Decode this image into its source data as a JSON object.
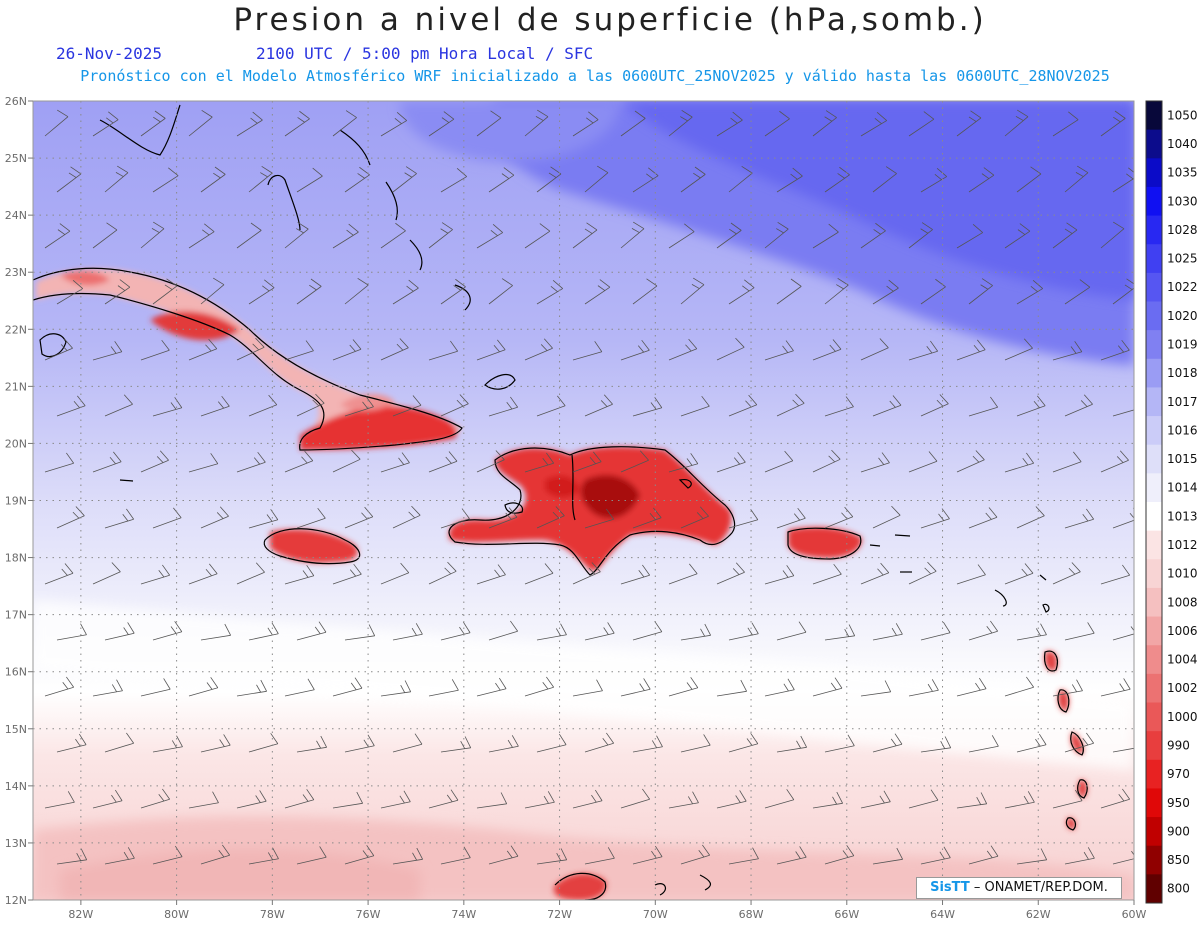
{
  "header": {
    "title": "Presion a nivel de superficie (hPa,somb.)",
    "date": "26-Nov-2025",
    "time": "2100 UTC / 5:00 pm Hora Local / SFC",
    "subtitle": "Pronóstico con el Modelo Atmosférico WRF inicializado a las 0600UTC_25NOV2025 y válido hasta las  0600UTC_28NOV2025"
  },
  "map": {
    "region": "Caribbean / Greater Antilles",
    "lon_range": [
      -83,
      -60
    ],
    "lat_range": [
      12,
      26
    ],
    "gridlines": "dotted",
    "lon_ticks": [
      "82W",
      "80W",
      "78W",
      "76W",
      "74W",
      "72W",
      "70W",
      "68W",
      "66W",
      "64W",
      "62W",
      "60W"
    ],
    "lat_ticks": [
      "26N",
      "25N",
      "24N",
      "23N",
      "22N",
      "21N",
      "20N",
      "19N",
      "18N",
      "17N",
      "16N",
      "15N",
      "14N",
      "13N",
      "12N"
    ],
    "overlay": "wind barbs",
    "colors": {
      "high_pressure": "#6a6cf2",
      "neutral": "#ffffff",
      "low_pressure": "#e82222",
      "coastline": "#000000"
    }
  },
  "colorbar": {
    "levels": [
      "1050",
      "1040",
      "1035",
      "1030",
      "1028",
      "1025",
      "1022",
      "1020",
      "1019",
      "1018",
      "1017",
      "1016",
      "1015",
      "1014",
      "1013",
      "1012",
      "1010",
      "1008",
      "1006",
      "1004",
      "1002",
      "1000",
      "990",
      "970",
      "950",
      "900",
      "850",
      "800"
    ],
    "colors": [
      "#08083a",
      "#0c0c8c",
      "#0b0bc8",
      "#1010f2",
      "#2828f2",
      "#4040f2",
      "#5656f2",
      "#6a6cf2",
      "#8080f2",
      "#9a9cf4",
      "#b4b6f6",
      "#cbccf8",
      "#dedff9",
      "#efeffb",
      "#ffffff",
      "#fbe4e4",
      "#f8d4d4",
      "#f5c0c0",
      "#f2a6a6",
      "#ef8c8c",
      "#ec7272",
      "#ea5858",
      "#e83e3e",
      "#e82222",
      "#e00808",
      "#c00000",
      "#900000",
      "#600000"
    ]
  },
  "credit": {
    "brand": "SisTT",
    "org": "– ONAMET/REP.DOM."
  }
}
